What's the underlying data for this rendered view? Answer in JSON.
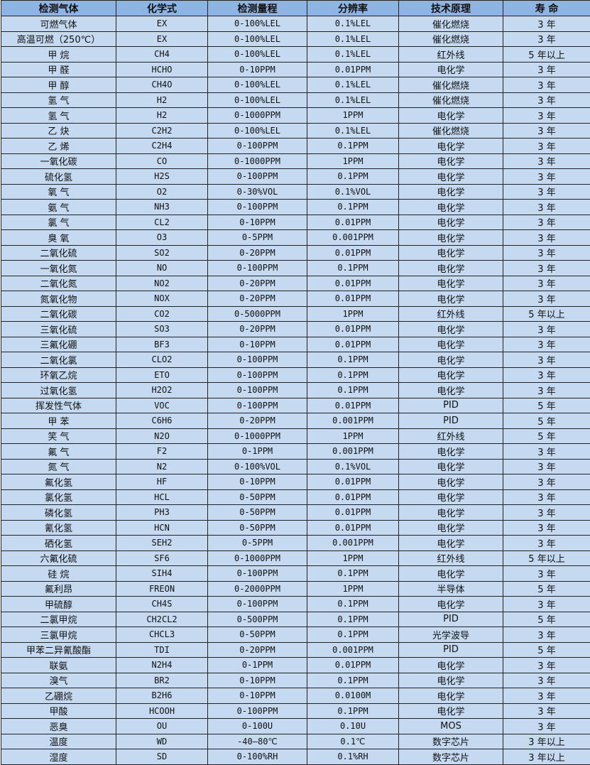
{
  "colors": {
    "header_bg": "#8db4e2",
    "row_bg": "#c5d9f1",
    "border": "#222222"
  },
  "table": {
    "headers": [
      "检测气体",
      "化学式",
      "检测量程",
      "分辨率",
      "技术原理",
      "寿 命"
    ],
    "rows": [
      [
        "可燃气体",
        "EX",
        "0-100%LEL",
        "0.1%LEL",
        "催化燃烧",
        "3 年"
      ],
      [
        "高温可燃（250℃）",
        "EX",
        "0-100%LEL",
        "0.1%LEL",
        "催化燃烧",
        "3 年"
      ],
      [
        "甲 烷",
        "CH4",
        "0-100%LEL",
        "0.1%LEL",
        "红外线",
        "5 年以上"
      ],
      [
        "甲 醛",
        "HCHO",
        "0-10PPM",
        "0.01PPM",
        "电化学",
        "3 年"
      ],
      [
        "甲 醇",
        "CH4O",
        "0-100%LEL",
        "0.1%LEL",
        "催化燃烧",
        "3 年"
      ],
      [
        "氢 气",
        "H2",
        "0-100%LEL",
        "0.1%LEL",
        "催化燃烧",
        "3 年"
      ],
      [
        "氢 气",
        "H2",
        "0-1000PPM",
        "1PPM",
        "电化学",
        "3 年"
      ],
      [
        "乙 炔",
        "C2H2",
        "0-100%LEL",
        "0.1%LEL",
        "催化燃烧",
        "3 年"
      ],
      [
        "乙 烯",
        "C2H4",
        "0-100PPM",
        "0.1PPM",
        "电化学",
        "3 年"
      ],
      [
        "一氧化碳",
        "CO",
        "0-1000PPM",
        "1PPM",
        "电化学",
        "3 年"
      ],
      [
        "硫化氢",
        "H2S",
        "0-100PPM",
        "0.1PPM",
        "电化学",
        "3 年"
      ],
      [
        "氧 气",
        "O2",
        "0-30%VOL",
        "0.1%VOL",
        "电化学",
        "3 年"
      ],
      [
        "氨 气",
        "NH3",
        "0-100PPM",
        "0.1PPM",
        "电化学",
        "3 年"
      ],
      [
        "氯 气",
        "CL2",
        "0-10PPM",
        "0.01PPM",
        "电化学",
        "3 年"
      ],
      [
        "臭 氧",
        "O3",
        "0-5PPM",
        "0.001PPM",
        "电化学",
        "3 年"
      ],
      [
        "二氧化硫",
        "SO2",
        "0-20PPM",
        "0.01PPM",
        "电化学",
        "3 年"
      ],
      [
        "一氧化氮",
        "NO",
        "0-100PPM",
        "0.1PPM",
        "电化学",
        "3 年"
      ],
      [
        "二氧化氮",
        "NO2",
        "0-20PPM",
        "0.01PPM",
        "电化学",
        "3 年"
      ],
      [
        "氮氧化物",
        "NOX",
        "0-20PPM",
        "0.01PPM",
        "电化学",
        "3 年"
      ],
      [
        "二氧化碳",
        "CO2",
        "0-5000PPM",
        "1PPM",
        "红外线",
        "5 年以上"
      ],
      [
        "三氧化硫",
        "SO3",
        "0-20PPM",
        "0.01PPM",
        "电化学",
        "3 年"
      ],
      [
        "三氟化硼",
        "BF3",
        "0-10PPM",
        "0.01PPM",
        "电化学",
        "3 年"
      ],
      [
        "二氧化氯",
        "CLO2",
        "0-100PPM",
        "0.1PPM",
        "电化学",
        "3 年"
      ],
      [
        "环氧乙烷",
        "ETO",
        "0-100PPM",
        "0.1PPM",
        "电化学",
        "3 年"
      ],
      [
        "过氧化氢",
        "H2O2",
        "0-100PPM",
        "0.1PPM",
        "电化学",
        "3 年"
      ],
      [
        "挥发性气体",
        "VOC",
        "0-100PPM",
        "0.01PPM",
        "PID",
        "5 年"
      ],
      [
        "甲 苯",
        "C6H6",
        "0-20PPM",
        "0.001PPM",
        "PID",
        "5 年"
      ],
      [
        "笑 气",
        "N2O",
        "0-1000PPM",
        "1PPM",
        "红外线",
        "5 年"
      ],
      [
        "氟 气",
        "F2",
        "0-1PPM",
        "0.001PPM",
        "电化学",
        "3 年"
      ],
      [
        "氮 气",
        "N2",
        "0-100%VOL",
        "0.1%VOL",
        "电化学",
        "3 年"
      ],
      [
        "氟化氢",
        "HF",
        "0-10PPM",
        "0.01PPM",
        "电化学",
        "3 年"
      ],
      [
        "氯化氢",
        "HCL",
        "0-50PPM",
        "0.01PPM",
        "电化学",
        "3 年"
      ],
      [
        "磷化氢",
        "PH3",
        "0-50PPM",
        "0.01PPM",
        "电化学",
        "3 年"
      ],
      [
        "氰化氢",
        "HCN",
        "0-50PPM",
        "0.01PPM",
        "电化学",
        "3 年"
      ],
      [
        "硒化氢",
        "SEH2",
        "0-5PPM",
        "0.001PPM",
        "电化学",
        "3 年"
      ],
      [
        "六氟化硫",
        "SF6",
        "0-1000PPM",
        "1PPM",
        "红外线",
        "5 年以上"
      ],
      [
        "硅 烷",
        "SIH4",
        "0-100PPM",
        "0.1PPM",
        "电化学",
        "3 年"
      ],
      [
        "氟利昂",
        "FREON",
        "0-2000PPM",
        "1PPM",
        "半导体",
        "5 年"
      ],
      [
        "甲硫醇",
        "CH4S",
        "0-100PPM",
        "0.1PPM",
        "电化学",
        "3 年"
      ],
      [
        "二氯甲烷",
        "CH2CL2",
        "0-500PPM",
        "0.1PPM",
        "PID",
        "5 年"
      ],
      [
        "三氯甲烷",
        "CHCL3",
        "0-50PPM",
        "0.1PPM",
        "光学波导",
        "3 年"
      ],
      [
        "甲苯二异氰酸酯",
        "TDI",
        "0-20PPM",
        "0.001PPM",
        "PID",
        "5 年"
      ],
      [
        "联氨",
        "N2H4",
        "0-1PPM",
        "0.01PPM",
        "电化学",
        "3 年"
      ],
      [
        "溴气",
        "BR2",
        "0-10PPM",
        "0.1PPM",
        "电化学",
        "3 年"
      ],
      [
        "乙硼烷",
        "B2H6",
        "0-10PPM",
        "0.0100M",
        "电化学",
        "3 年"
      ],
      [
        "甲酸",
        "HCOOH",
        "0-100PPM",
        "0.1PPM",
        "电化学",
        "3 年"
      ],
      [
        "恶臭",
        "OU",
        "0-100U",
        "0.10U",
        "MOS",
        "3 年"
      ],
      [
        "温度",
        "WD",
        "-40—80℃",
        "0.1℃",
        "数字芯片",
        "3 年以上"
      ],
      [
        "湿度",
        "SD",
        "0-100%RH",
        "0.1%RH",
        "数字芯片",
        "3 年以上"
      ]
    ]
  }
}
